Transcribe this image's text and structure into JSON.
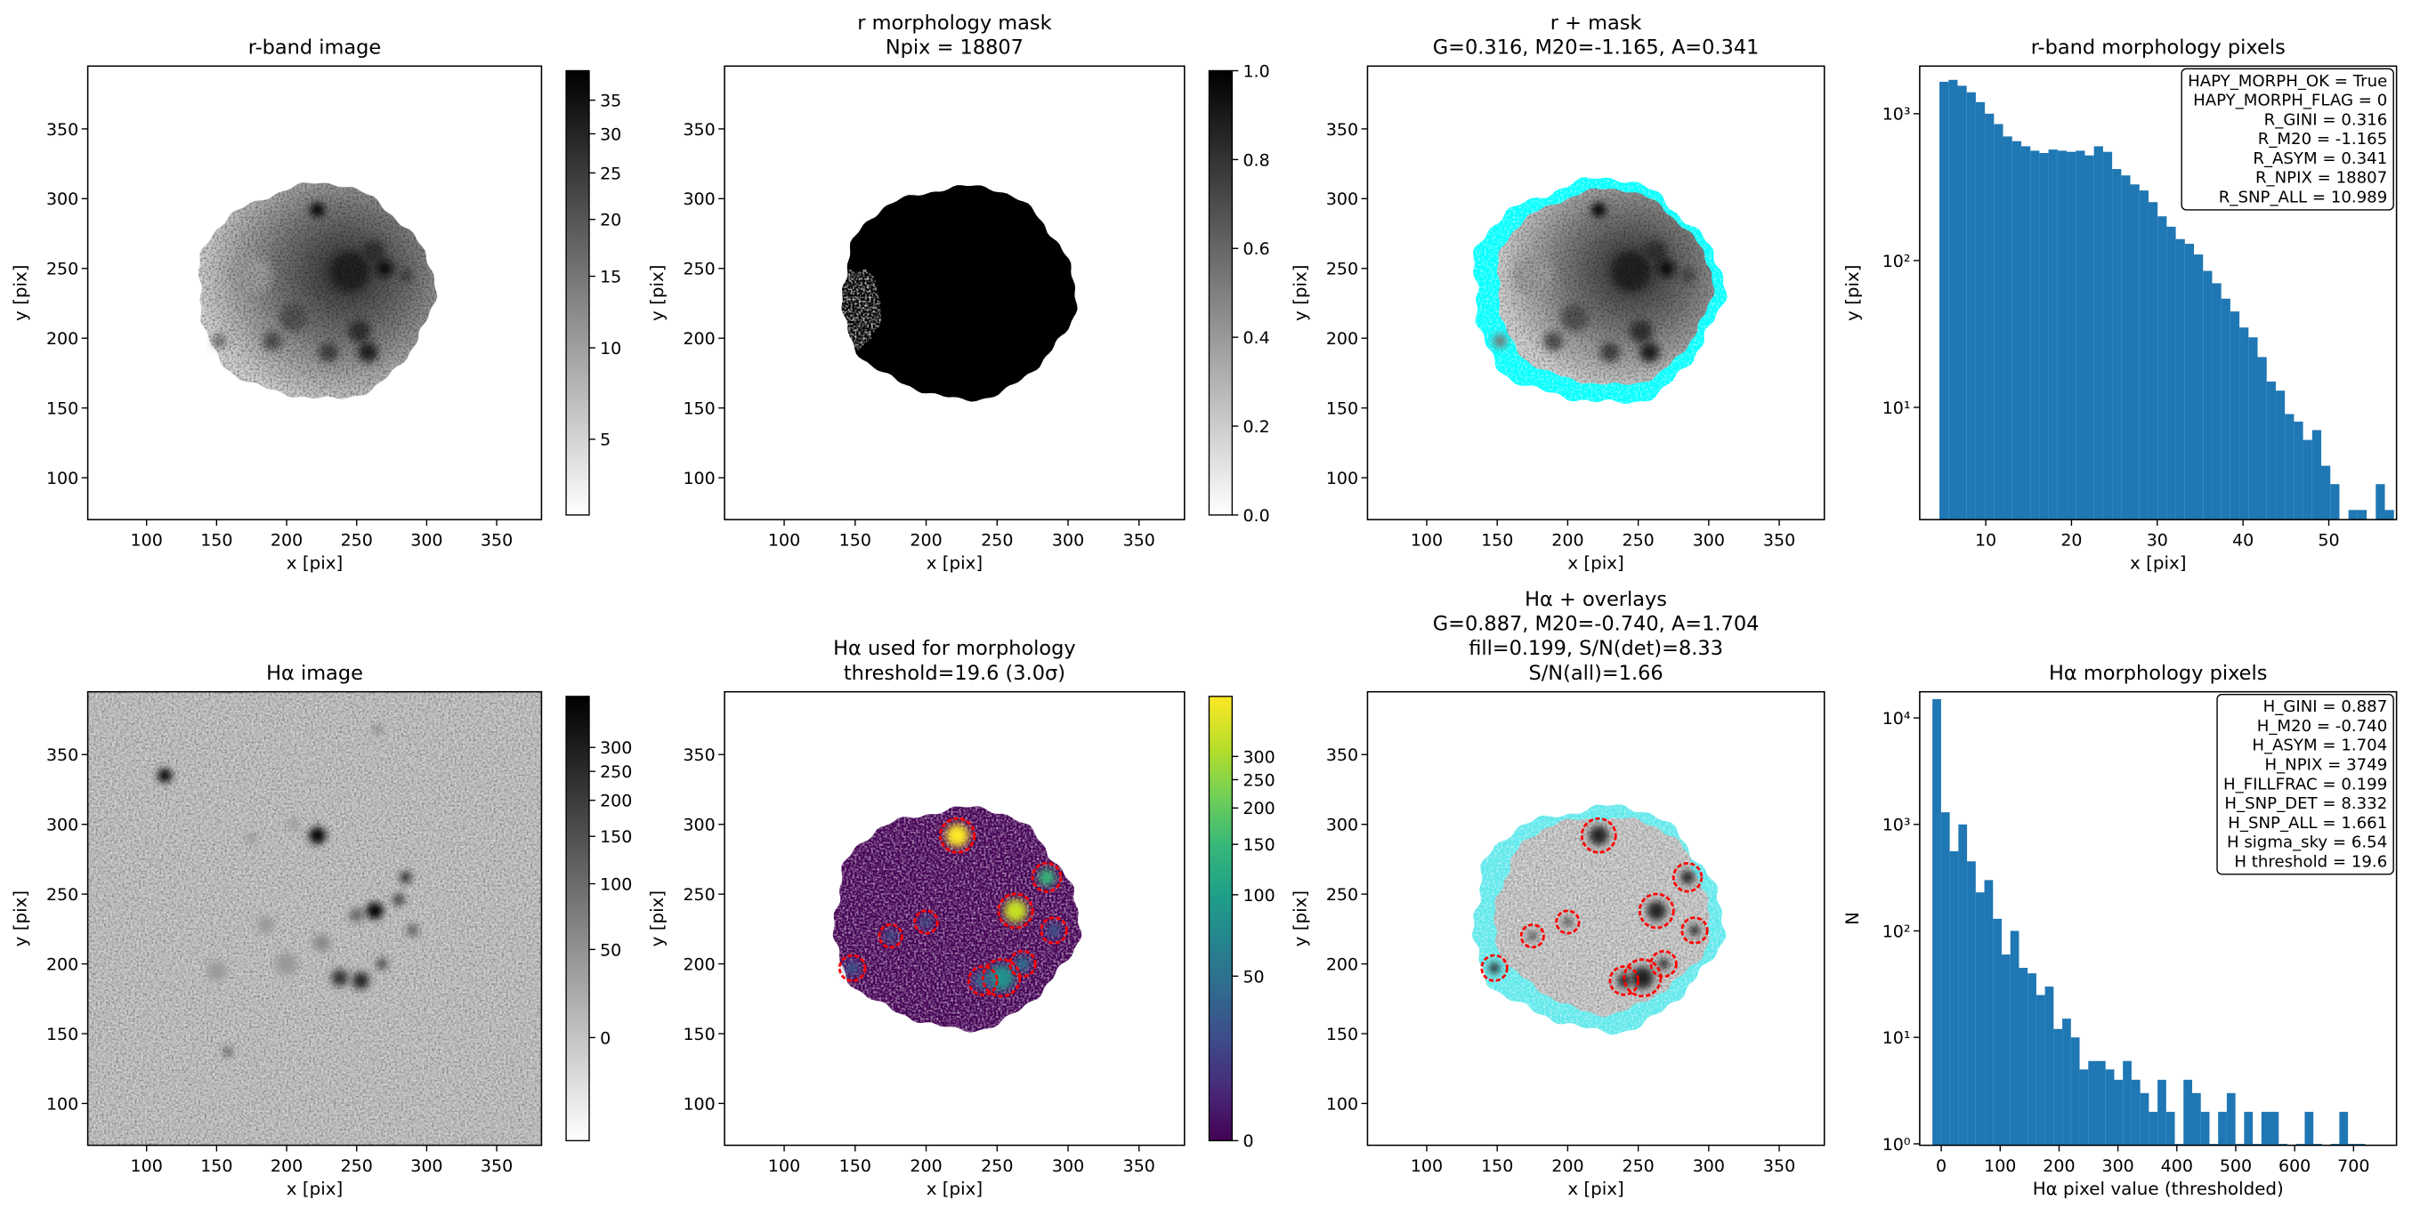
{
  "chart_data": [
    {
      "type": "image",
      "cmap": "gray_r",
      "title": [
        "r-band image"
      ],
      "xlabel": "x [pix]",
      "ylabel": "y [pix]",
      "xlim": [
        58,
        382
      ],
      "ylim": [
        70,
        395
      ],
      "xticks": [
        100,
        150,
        200,
        250,
        300,
        350
      ],
      "yticks": [
        100,
        150,
        200,
        250,
        300,
        350
      ],
      "colorbar": {
        "scale": "asinh",
        "lim": [
          1.5,
          40
        ],
        "ticks": [
          5,
          10,
          15,
          20,
          25,
          30,
          35
        ]
      }
    },
    {
      "type": "image",
      "cmap": "gray_r",
      "title": [
        "r morphology mask",
        "Npix = 18807"
      ],
      "xlabel": "x [pix]",
      "ylabel": "y [pix]",
      "xlim": [
        58,
        382
      ],
      "ylim": [
        70,
        395
      ],
      "xticks": [
        100,
        150,
        200,
        250,
        300,
        350
      ],
      "yticks": [
        100,
        150,
        200,
        250,
        300,
        350
      ],
      "colorbar": {
        "scale": "linear",
        "lim": [
          0,
          1
        ],
        "ticks": [
          {
            "value": 0,
            "label": "0.0"
          },
          0.2,
          0.4,
          0.6,
          0.8,
          {
            "value": 1,
            "label": "1.0"
          }
        ]
      }
    },
    {
      "type": "image",
      "cmap": "gray_r",
      "title": [
        "r + mask",
        "G=0.316, M20=-1.165, A=0.341"
      ],
      "xlabel": "x [pix]",
      "ylabel": "y [pix]",
      "xlim": [
        58,
        382
      ],
      "ylim": [
        70,
        395
      ],
      "xticks": [
        100,
        150,
        200,
        250,
        300,
        350
      ],
      "yticks": [
        100,
        150,
        200,
        250,
        300,
        350
      ]
    },
    {
      "type": "histogram",
      "title": [
        "r-band morphology pixels"
      ],
      "xlabel": "x [pix]",
      "ylabel": "y [pix]",
      "color": "#1f77b4",
      "log_y": true,
      "bins": [
        4.6,
        5.66,
        6.72,
        7.78,
        8.84,
        9.9,
        10.96,
        12.02,
        13.08,
        14.14,
        15.2,
        16.26,
        17.32,
        18.38,
        19.44,
        20.5,
        21.56,
        22.62,
        23.68,
        24.74,
        25.8,
        26.86,
        27.92,
        28.98,
        30.04,
        31.1,
        32.16,
        33.22,
        34.28,
        35.34,
        36.4,
        37.46,
        38.52,
        39.58,
        40.64,
        41.7,
        42.76,
        43.82,
        44.88,
        45.94,
        47.0,
        48.06,
        49.12,
        50.18,
        51.24,
        52.3,
        53.36,
        54.42,
        55.48,
        56.54,
        57.6
      ],
      "counts": [
        1650,
        1700,
        1550,
        1400,
        1200,
        1000,
        850,
        700,
        650,
        600,
        560,
        540,
        570,
        560,
        550,
        560,
        520,
        600,
        550,
        420,
        380,
        330,
        300,
        250,
        200,
        170,
        140,
        130,
        110,
        85,
        70,
        55,
        45,
        35,
        30,
        22,
        15,
        13,
        9,
        8,
        6,
        7,
        4,
        3,
        0,
        2,
        2,
        0,
        3,
        2
      ],
      "xlim": [
        2.3,
        57.9
      ],
      "ylim": [
        1.72,
        2110
      ],
      "xticks": [
        10,
        20,
        30,
        40,
        50
      ],
      "yticks": [
        {
          "value": 10,
          "label": "10¹"
        },
        {
          "value": 100,
          "label": "10²"
        },
        {
          "value": 1000,
          "label": "10³"
        }
      ],
      "annotation_corner": "upper right",
      "annotation": [
        "HAPY_MORPH_OK = True",
        "HAPY_MORPH_FLAG = 0",
        "R_GINI = 0.316",
        "R_M20 = -1.165",
        "R_ASYM = 0.341",
        "R_NPIX = 18807",
        "R_SNP_ALL = 10.989"
      ]
    },
    {
      "type": "image",
      "cmap": "gray_r",
      "title": [
        "Hα image"
      ],
      "xlabel": "x [pix]",
      "ylabel": "y [pix]",
      "xlim": [
        58,
        382
      ],
      "ylim": [
        70,
        395
      ],
      "xticks": [
        100,
        150,
        200,
        250,
        300,
        350
      ],
      "yticks": [
        100,
        150,
        200,
        250,
        300,
        350
      ],
      "colorbar": {
        "scale": "asinh",
        "lim": [
          -60,
          440
        ],
        "ticks": [
          0,
          50,
          100,
          150,
          200,
          250,
          300
        ]
      }
    },
    {
      "type": "image",
      "cmap": "viridis",
      "title": [
        "Hα used for morphology",
        "threshold=19.6 (3.0σ)"
      ],
      "xlabel": "x [pix]",
      "ylabel": "y [pix]",
      "xlim": [
        58,
        382
      ],
      "ylim": [
        70,
        395
      ],
      "xticks": [
        100,
        150,
        200,
        250,
        300,
        350
      ],
      "yticks": [
        100,
        150,
        200,
        250,
        300,
        350
      ],
      "colorbar": {
        "scale": "asinh",
        "lim": [
          0,
          480
        ],
        "ticks": [
          0,
          50,
          100,
          150,
          200,
          250,
          300
        ]
      }
    },
    {
      "type": "image",
      "cmap": "gray_r",
      "title": [
        "Hα + overlays",
        "G=0.887, M20=-0.740, A=1.704",
        "fill=0.199, S/N(det)=8.33",
        "S/N(all)=1.66"
      ],
      "xlabel": "x [pix]",
      "ylabel": "y [pix]",
      "xlim": [
        58,
        382
      ],
      "ylim": [
        70,
        395
      ],
      "xticks": [
        100,
        150,
        200,
        250,
        300,
        350
      ],
      "yticks": [
        100,
        150,
        200,
        250,
        300,
        350
      ]
    },
    {
      "type": "histogram",
      "title": [
        "Hα morphology pixels"
      ],
      "xlabel": "Hα pixel value (thresholded)",
      "ylabel": "N",
      "color": "#1f77b4",
      "log_y": true,
      "bins": [
        -15,
        -0.3,
        14.4,
        29.1,
        43.8,
        58.5,
        73.2,
        87.9,
        102.6,
        117.3,
        132,
        146.7,
        161.4,
        176.1,
        190.8,
        205.5,
        220.2,
        234.9,
        249.6,
        264.3,
        279,
        293.7,
        308.4,
        323.1,
        337.8,
        352.5,
        367.2,
        381.9,
        396.6,
        411.3,
        426,
        440.7,
        455.4,
        470.1,
        484.8,
        499.5,
        514.2,
        528.9,
        543.6,
        558.3,
        573,
        587.7,
        602.4,
        617.1,
        631.8,
        646.5,
        661.2,
        675.9,
        690.6,
        705.3,
        720
      ],
      "counts": [
        15000,
        1300,
        560,
        1000,
        450,
        230,
        300,
        130,
        60,
        100,
        45,
        40,
        25,
        30,
        12,
        15,
        10,
        5,
        6,
        6,
        5,
        4,
        6,
        4,
        3,
        2,
        4,
        2,
        1,
        4,
        3,
        2,
        1,
        2,
        3,
        1,
        2,
        1,
        2,
        2,
        1,
        0,
        1,
        2,
        1,
        0,
        1,
        2,
        1,
        1
      ],
      "xlim": [
        -36.6,
        773
      ],
      "ylim": [
        0.97,
        17600
      ],
      "xticks": [
        0,
        100,
        200,
        300,
        400,
        500,
        600,
        700
      ],
      "yticks": [
        {
          "value": 1,
          "label": "10⁰"
        },
        {
          "value": 10,
          "label": "10¹"
        },
        {
          "value": 100,
          "label": "10²"
        },
        {
          "value": 1000,
          "label": "10³"
        },
        {
          "value": 10000,
          "label": "10⁴"
        }
      ],
      "annotation_corner": "upper right",
      "annotation": [
        "H_GINI = 0.887",
        "H_M20 = -0.740",
        "H_ASYM = 1.704",
        "H_NPIX = 3749",
        "H_FILLFRAC = 0.199",
        "H_SNP_DET = 8.332",
        "H_SNP_ALL = 1.661",
        "H sigma_sky = 6.54",
        "H threshold = 19.6"
      ]
    }
  ]
}
